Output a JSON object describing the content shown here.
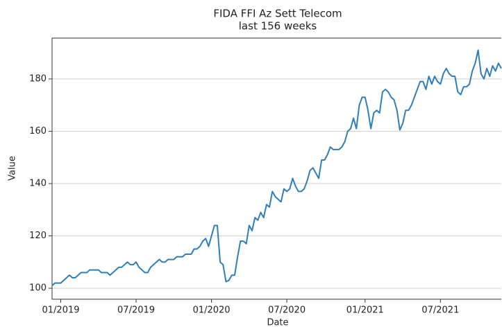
{
  "chart_data": {
    "type": "line",
    "title": "FIDA FFI Az Sett Telecom",
    "subtitle": "last 156 weeks",
    "x_label": "Date",
    "y_label": "Value",
    "color": "#2e7ebc",
    "grid": true,
    "values": [
      101,
      102,
      102,
      102,
      103,
      104,
      105,
      104,
      104,
      105,
      106,
      106,
      106,
      107,
      107,
      107,
      107,
      106,
      106,
      106,
      105,
      106,
      107,
      108,
      108,
      109,
      110,
      109,
      109,
      110,
      108,
      107,
      106,
      106,
      108,
      109,
      110,
      111,
      110,
      110,
      111,
      111,
      111,
      112,
      112,
      112,
      113,
      113,
      113,
      115,
      115,
      116,
      118,
      119,
      116,
      120,
      124,
      124,
      110,
      109,
      102.5,
      103,
      105,
      105,
      112,
      118,
      118,
      117,
      124,
      122,
      127,
      126,
      129,
      127,
      132,
      131,
      137,
      135,
      134,
      133,
      138,
      137,
      138,
      142,
      139,
      137,
      137,
      138,
      141,
      145,
      146,
      144,
      142,
      149,
      149,
      151,
      154,
      153,
      153,
      153,
      154,
      156,
      160,
      161,
      165,
      161,
      170,
      173,
      173,
      168,
      161,
      167,
      168,
      167,
      175,
      176,
      175,
      173,
      172,
      168,
      160.5,
      163,
      168,
      168,
      170,
      173,
      176,
      179,
      179,
      176,
      181,
      178,
      181,
      179,
      178,
      182,
      184,
      182,
      181,
      181,
      175,
      174,
      177,
      177,
      178,
      183,
      186,
      191,
      182,
      180,
      184,
      181,
      185,
      183,
      186,
      184
    ],
    "xlim": [
      0,
      155
    ],
    "xticks": [
      {
        "value": 3,
        "label": "01/2019"
      },
      {
        "value": 29,
        "label": "07/2019"
      },
      {
        "value": 55,
        "label": "01/2020"
      },
      {
        "value": 81,
        "label": "07/2020"
      },
      {
        "value": 108,
        "label": "01/2021"
      },
      {
        "value": 134,
        "label": "07/2021"
      }
    ],
    "ylim": [
      95.8,
      195.6
    ],
    "yticks": [
      100,
      120,
      140,
      160,
      180
    ]
  }
}
